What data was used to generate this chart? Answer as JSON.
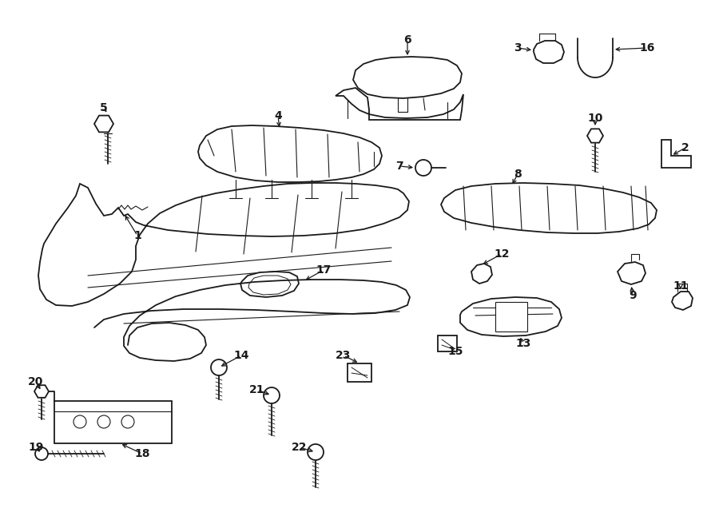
{
  "bg_color": "#ffffff",
  "line_color": "#1a1a1a",
  "fig_width": 9.0,
  "fig_height": 6.61,
  "dpi": 100,
  "font_size": 10,
  "lw_main": 1.3,
  "lw_thin": 0.8,
  "lw_thick": 1.6
}
